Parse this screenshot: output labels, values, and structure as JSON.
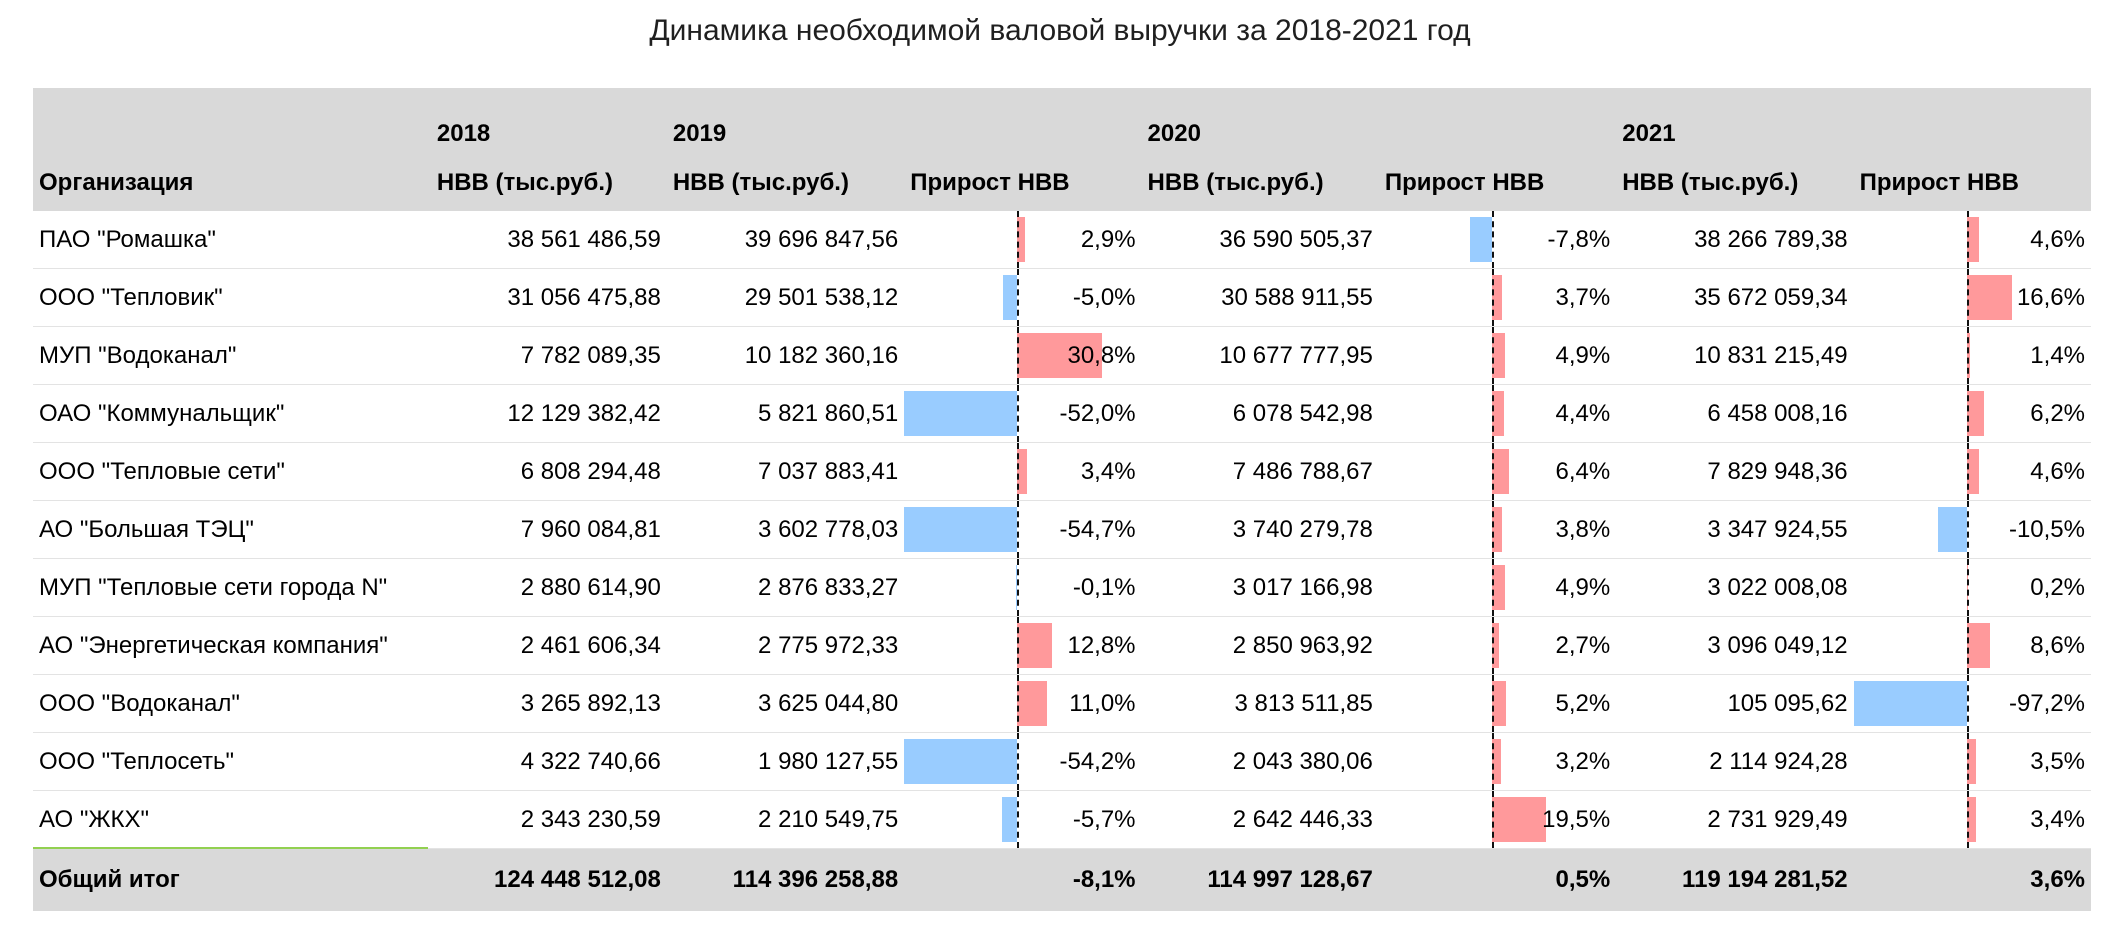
{
  "title": "Динамика необходимой валовой выручки за 2018-2021 год",
  "header": {
    "years": [
      "2018",
      "2019",
      "2020",
      "2021"
    ],
    "org_label": "Организация",
    "nvv_label": "НВВ (тыс.руб.)",
    "growth_label": "Прирост НВВ"
  },
  "colors": {
    "positive_bar": "#ff999b",
    "negative_bar": "#99ccff",
    "header_bg": "#d9d9d9"
  },
  "rows": [
    {
      "org": "ПАО \"Ромашка\"",
      "v2018": "38 561 486,59",
      "v2019": "39 696 847,56",
      "g2019": "2,9%",
      "v2020": "36 590 505,37",
      "g2020": "-7,8%",
      "v2021": "38 266 789,38",
      "g2021": "4,6%"
    },
    {
      "org": "ООО \"Тепловик\"",
      "v2018": "31 056 475,88",
      "v2019": "29 501 538,12",
      "g2019": "-5,0%",
      "v2020": "30 588 911,55",
      "g2020": "3,7%",
      "v2021": "35 672 059,34",
      "g2021": "16,6%"
    },
    {
      "org": "МУП \"Водоканал\"",
      "v2018": "7 782 089,35",
      "v2019": "10 182 360,16",
      "g2019": "30,8%",
      "v2020": "10 677 777,95",
      "g2020": "4,9%",
      "v2021": "10 831 215,49",
      "g2021": "1,4%"
    },
    {
      "org": "ОАО \"Коммунальщик\"",
      "v2018": "12 129 382,42",
      "v2019": "5 821 860,51",
      "g2019": "-52,0%",
      "v2020": "6 078 542,98",
      "g2020": "4,4%",
      "v2021": "6 458 008,16",
      "g2021": "6,2%"
    },
    {
      "org": "ООО \"Тепловые сети\"",
      "v2018": "6 808 294,48",
      "v2019": "7 037 883,41",
      "g2019": "3,4%",
      "v2020": "7 486 788,67",
      "g2020": "6,4%",
      "v2021": "7 829 948,36",
      "g2021": "4,6%"
    },
    {
      "org": "АО \"Большая ТЭЦ\"",
      "v2018": "7 960 084,81",
      "v2019": "3 602 778,03",
      "g2019": "-54,7%",
      "v2020": "3 740 279,78",
      "g2020": "3,8%",
      "v2021": "3 347 924,55",
      "g2021": "-10,5%"
    },
    {
      "org": "МУП \"Тепловые сети города N\"",
      "v2018": "2 880 614,90",
      "v2019": "2 876 833,27",
      "g2019": "-0,1%",
      "v2020": "3 017 166,98",
      "g2020": "4,9%",
      "v2021": "3 022 008,08",
      "g2021": "0,2%"
    },
    {
      "org": "АО \"Энергетическая компания\"",
      "v2018": "2 461 606,34",
      "v2019": "2 775 972,33",
      "g2019": "12,8%",
      "v2020": "2 850 963,92",
      "g2020": "2,7%",
      "v2021": "3 096 049,12",
      "g2021": "8,6%"
    },
    {
      "org": "ООО \"Водоканал\"",
      "v2018": "3 265 892,13",
      "v2019": "3 625 044,80",
      "g2019": "11,0%",
      "v2020": "3 813 511,85",
      "g2020": "5,2%",
      "v2021": "105 095,62",
      "g2021": "-97,2%"
    },
    {
      "org": "ООО \"Теплосеть\"",
      "v2018": "4 322 740,66",
      "v2019": "1 980 127,55",
      "g2019": "-54,2%",
      "v2020": "2 043 380,06",
      "g2020": "3,2%",
      "v2021": "2 114 924,28",
      "g2021": "3,5%"
    },
    {
      "org": "АО \"ЖКХ\"",
      "v2018": "2 343 230,59",
      "v2019": "2 210 549,75",
      "g2019": "-5,7%",
      "v2020": "2 642 446,33",
      "g2020": "19,5%",
      "v2021": "2 731 929,49",
      "g2021": "3,4%"
    }
  ],
  "total": {
    "org": "Общий итог",
    "v2018": "124 448 512,08",
    "v2019": "114 396 258,88",
    "g2019": "-8,1%",
    "v2020": "114 997 128,67",
    "g2020": "0,5%",
    "v2021": "119 194 281,52",
    "g2021": "3,6%"
  }
}
